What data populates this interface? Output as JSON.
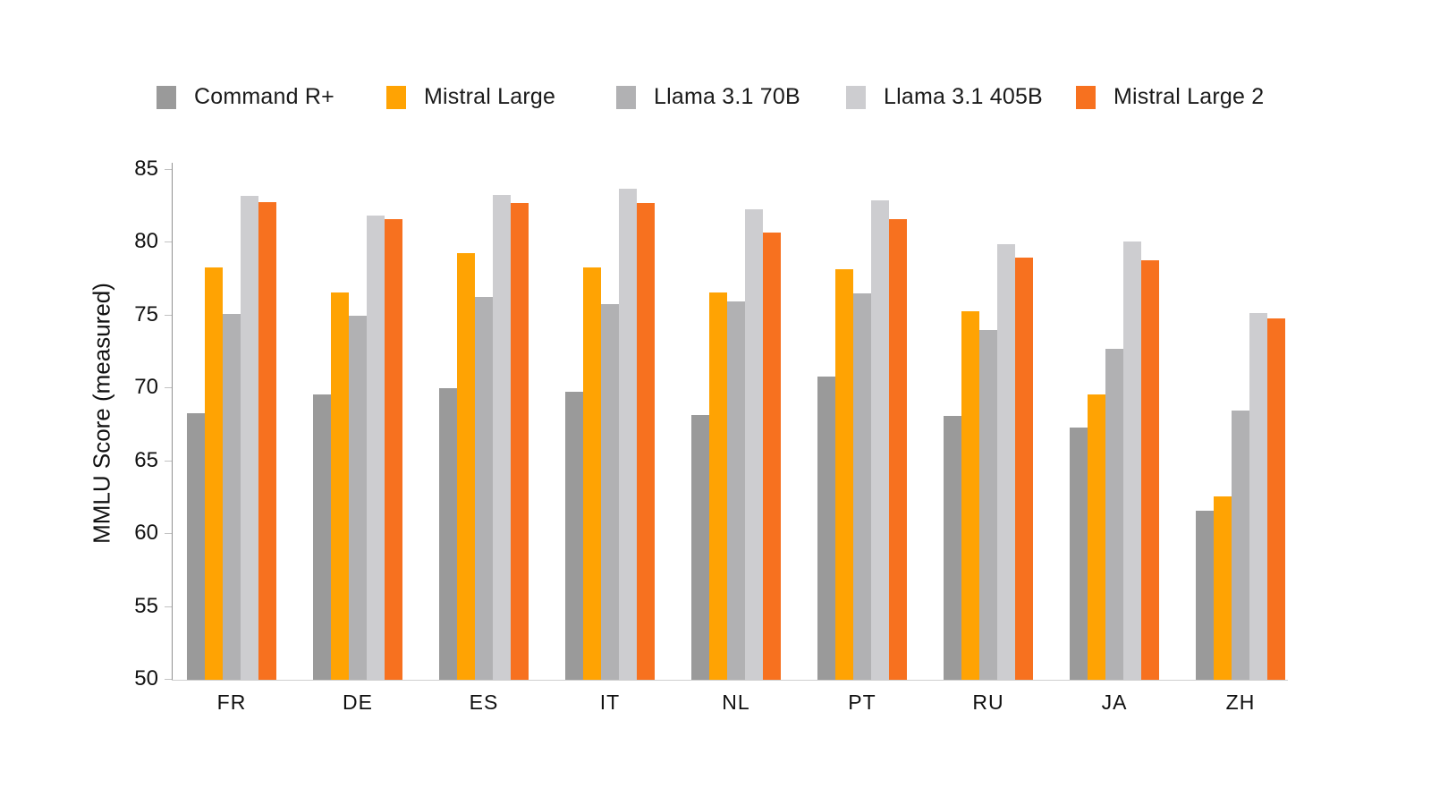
{
  "chart_data": {
    "type": "bar",
    "title": "",
    "ylabel": "MMLU Score (measured)",
    "xlabel": "",
    "ylim": [
      50,
      85
    ],
    "yticks": [
      50,
      55,
      60,
      65,
      70,
      75,
      80,
      85
    ],
    "grid": false,
    "legend_position": "top",
    "categories": [
      "FR",
      "DE",
      "ES",
      "IT",
      "NL",
      "PT",
      "RU",
      "JA",
      "ZH"
    ],
    "series": [
      {
        "name": "Command R+",
        "color": "#9a9a9a",
        "values": [
          68.3,
          69.6,
          70.0,
          69.8,
          68.2,
          70.8,
          68.1,
          67.3,
          61.6
        ]
      },
      {
        "name": "Mistral Large",
        "color": "#ffa303",
        "values": [
          78.3,
          76.6,
          79.3,
          78.3,
          76.6,
          78.2,
          75.3,
          69.6,
          62.6
        ]
      },
      {
        "name": "Llama 3.1 70B",
        "color": "#b1b1b3",
        "values": [
          75.1,
          75.0,
          76.3,
          75.8,
          76.0,
          76.5,
          74.0,
          72.7,
          68.5
        ]
      },
      {
        "name": "Llama 3.1 405B",
        "color": "#cdcdd0",
        "values": [
          83.2,
          81.9,
          83.3,
          83.7,
          82.3,
          82.9,
          79.9,
          80.1,
          75.2
        ]
      },
      {
        "name": "Mistral Large 2",
        "color": "#f7711f",
        "values": [
          82.8,
          81.6,
          82.7,
          82.7,
          80.7,
          81.6,
          79.0,
          78.8,
          74.8
        ]
      }
    ],
    "axis_colors": {
      "y_axis_line": "#8f8f8f",
      "x_axis_line": "#cfcfcf",
      "tick_mark": "#c2c2c2"
    }
  }
}
